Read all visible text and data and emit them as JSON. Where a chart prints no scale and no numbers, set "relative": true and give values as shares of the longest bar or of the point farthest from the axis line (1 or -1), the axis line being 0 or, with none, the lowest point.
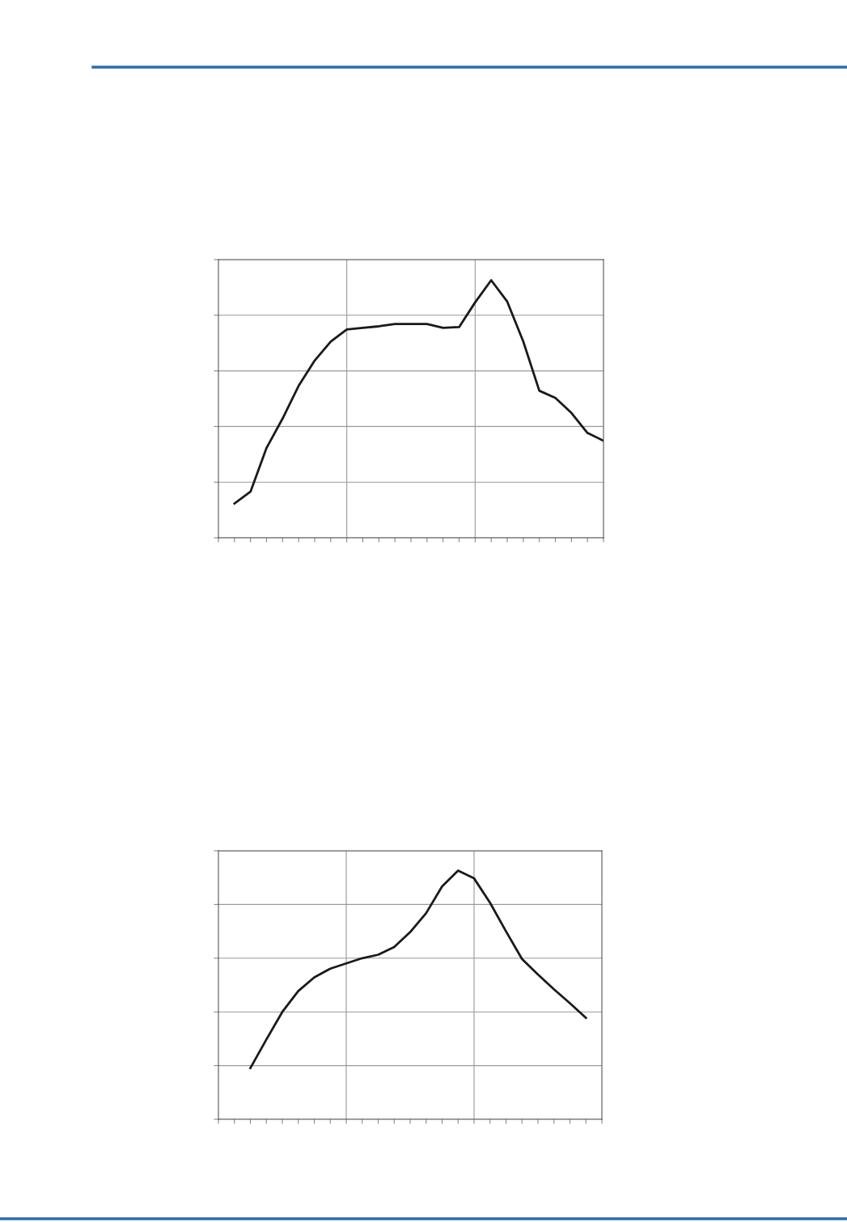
{
  "chart_data": [
    {
      "type": "line",
      "relative": true,
      "grid": true,
      "tick_labels": false,
      "legend": false,
      "marker": "none",
      "line_style": "solid",
      "categories": [
        null,
        null,
        null,
        null,
        null,
        null,
        null,
        null,
        null,
        null,
        null,
        null,
        null,
        null,
        null,
        null,
        null,
        null,
        null,
        null,
        null,
        null,
        null,
        null,
        null
      ],
      "series": [
        {
          "color": "#1a1a1a",
          "values": [
            null,
            0.133,
            0.179,
            0.349,
            0.463,
            0.59,
            0.688,
            0.762,
            0.809,
            0.815,
            0.821,
            0.83,
            0.83,
            0.83,
            0.815,
            0.818,
            0.914,
            1,
            0.917,
            0.762,
            0.571,
            0.543,
            0.485,
            0.407,
            0.377
          ]
        }
      ]
    },
    {
      "type": "line",
      "relative": true,
      "grid": true,
      "tick_labels": false,
      "legend": false,
      "marker": "none",
      "line_style": "solid",
      "categories": [
        null,
        null,
        null,
        null,
        null,
        null,
        null,
        null,
        null,
        null,
        null,
        null,
        null,
        null,
        null,
        null,
        null,
        null,
        null,
        null,
        null,
        null,
        null,
        null,
        null
      ],
      "series": [
        {
          "color": "#1a1a1a",
          "values": [
            null,
            null,
            0.206,
            0.321,
            0.432,
            0.516,
            0.571,
            0.606,
            0.627,
            0.648,
            0.662,
            0.693,
            0.753,
            0.829,
            0.937,
            1,
            0.969,
            0.871,
            0.756,
            0.645,
            0.582,
            0.523,
            0.467,
            0.408,
            null
          ]
        }
      ]
    }
  ]
}
